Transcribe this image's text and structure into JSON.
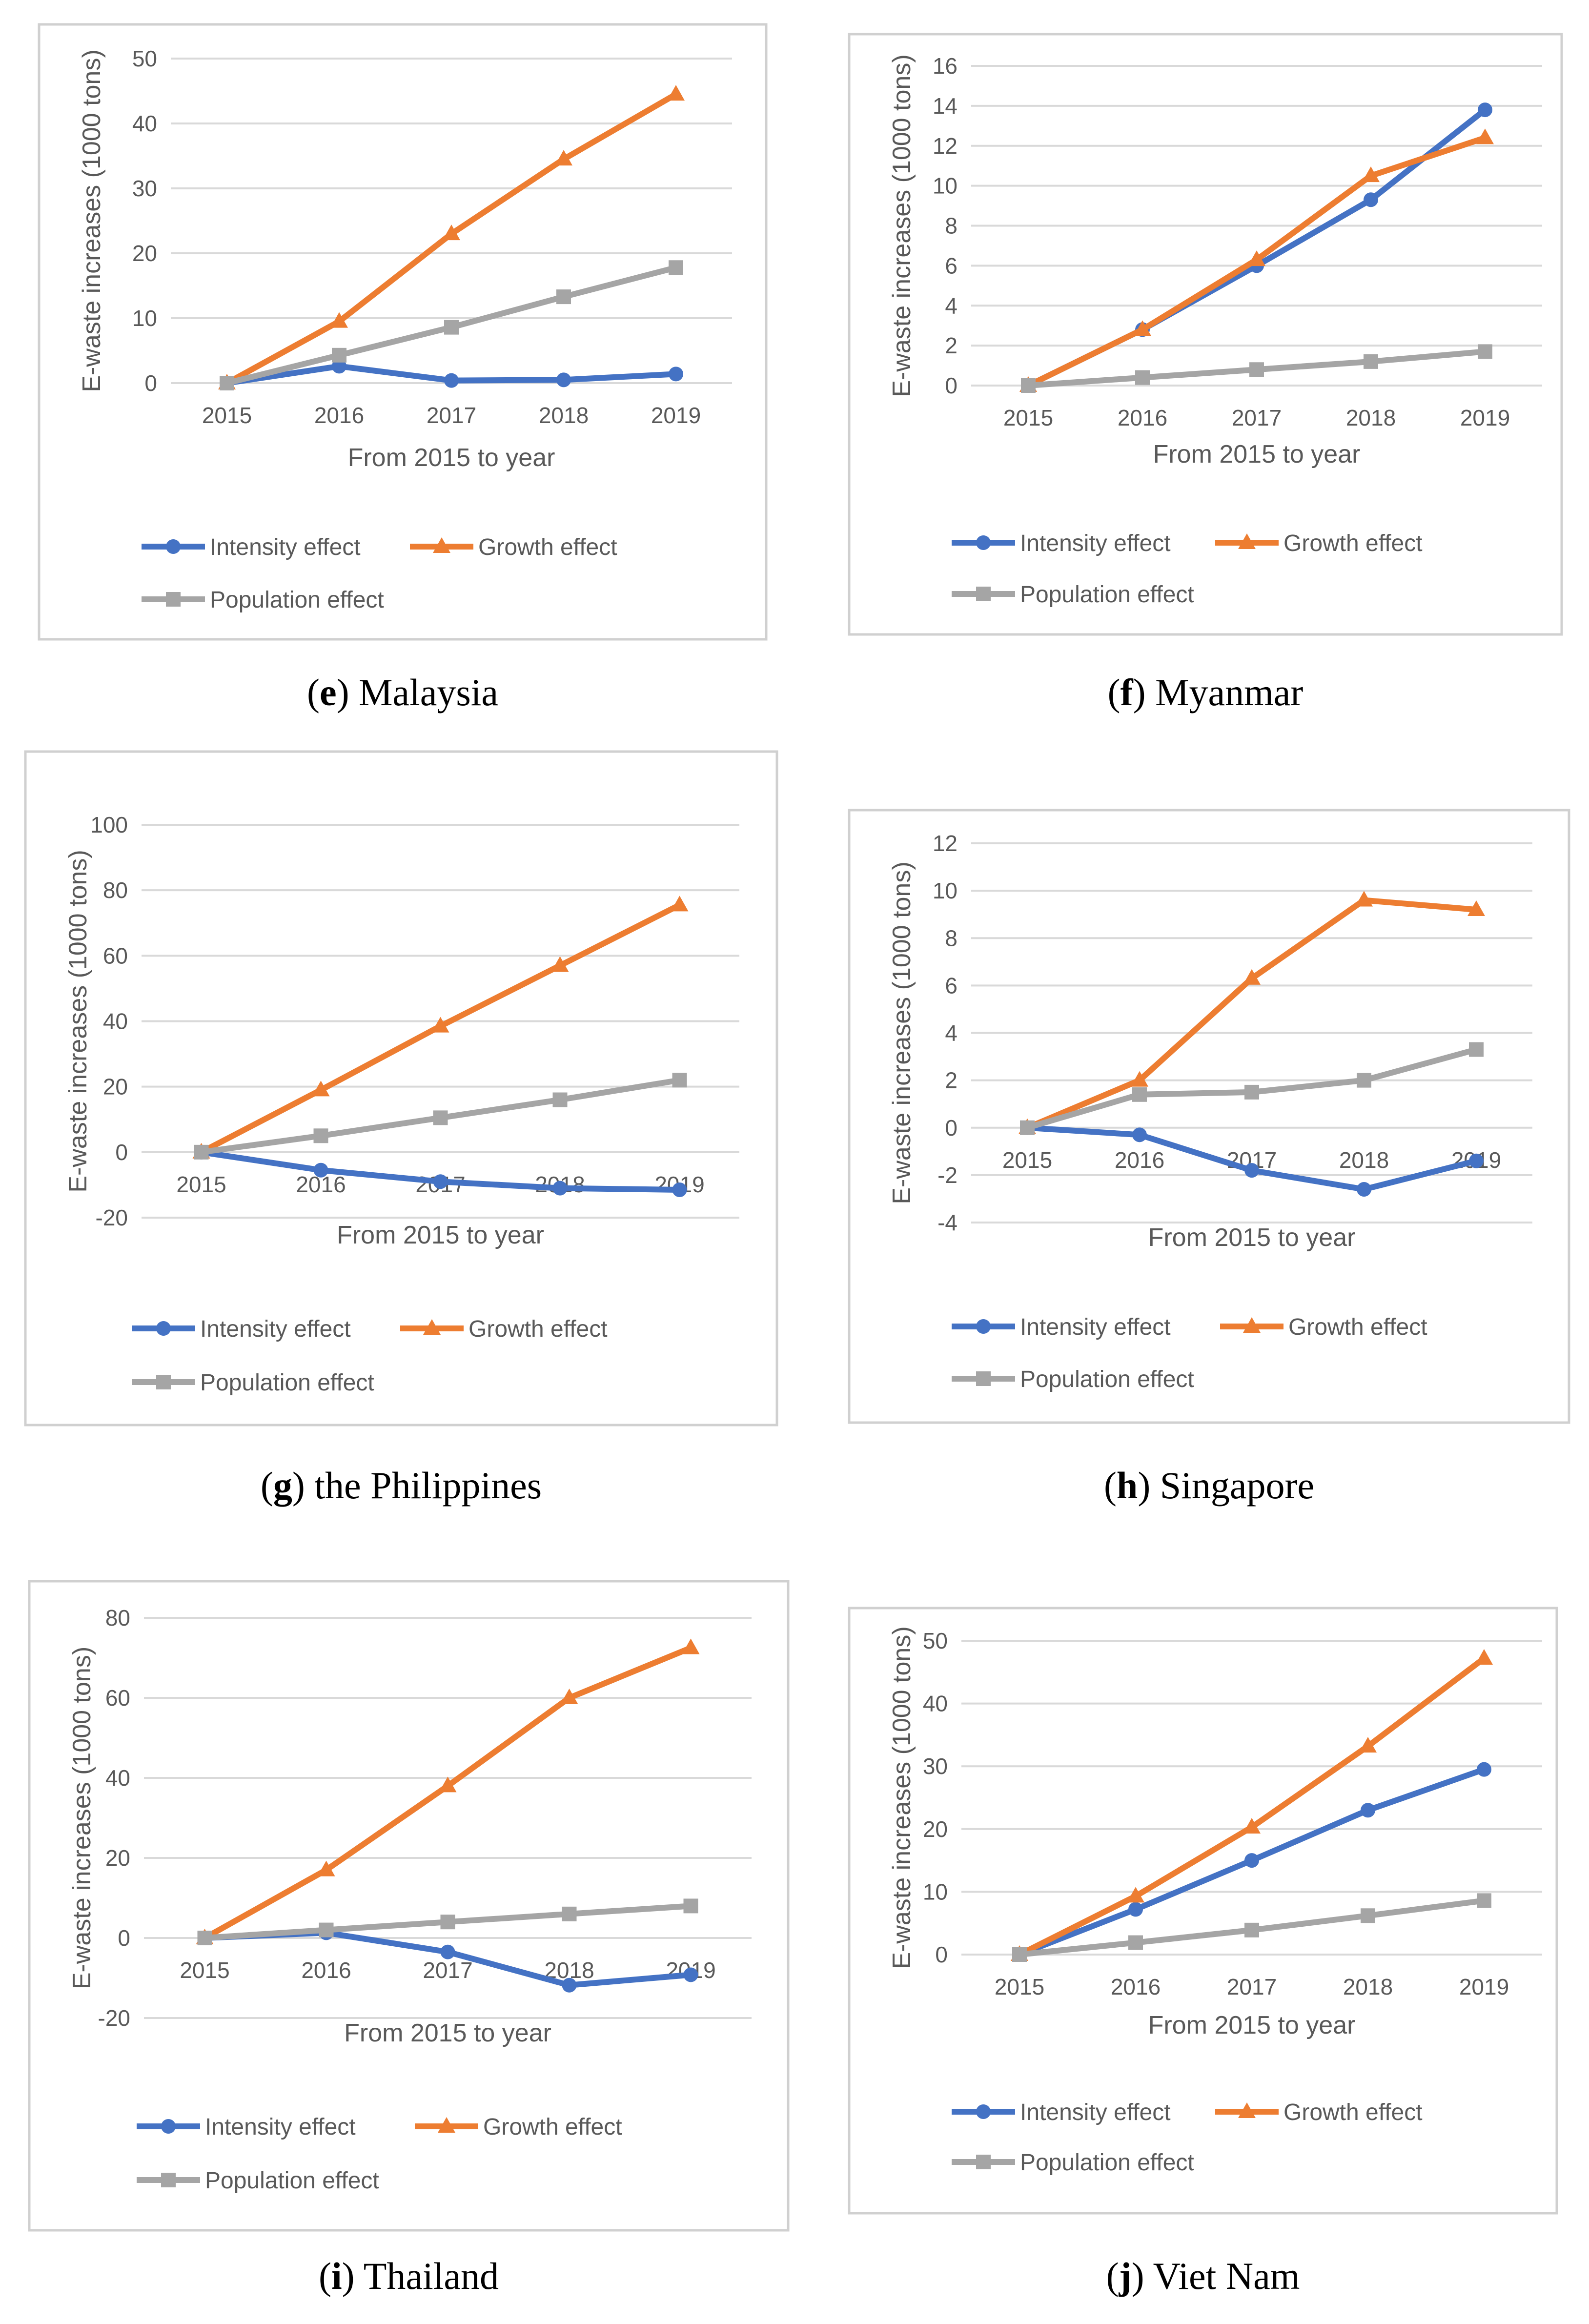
{
  "colors": {
    "intensity": "#4472C4",
    "growth": "#ED7D31",
    "population": "#A5A5A5"
  },
  "legend": {
    "intensity": "Intensity effect",
    "growth": "Growth effect",
    "population": "Population effect"
  },
  "chart_data": [
    {
      "id": "e",
      "caption_letter": "e",
      "caption_text": " Malaysia",
      "type": "line",
      "categories": [
        "2015",
        "2016",
        "2017",
        "2018",
        "2019"
      ],
      "xlabel": "From 2015 to year",
      "ylabel": "E-waste increases (1000 tons)",
      "ylim": [
        0,
        50
      ],
      "yticks": [
        0,
        10,
        20,
        30,
        40,
        50
      ],
      "series": [
        {
          "name": "Intensity effect",
          "values": [
            0,
            2.6,
            0.4,
            0.5,
            1.4
          ]
        },
        {
          "name": "Growth effect",
          "values": [
            0,
            9.5,
            23,
            34.5,
            44.5
          ]
        },
        {
          "name": "Population effect",
          "values": [
            0,
            4.3,
            8.6,
            13.3,
            17.8
          ]
        }
      ]
    },
    {
      "id": "f",
      "caption_letter": "f",
      "caption_text": " Myanmar",
      "type": "line",
      "categories": [
        "2015",
        "2016",
        "2017",
        "2018",
        "2019"
      ],
      "xlabel": "From 2015 to year",
      "ylabel": "E-waste increases (1000 tons)",
      "ylim": [
        0,
        16
      ],
      "yticks": [
        0,
        2,
        4,
        6,
        8,
        10,
        12,
        14,
        16
      ],
      "series": [
        {
          "name": "Intensity effect",
          "values": [
            0,
            2.8,
            6.0,
            9.3,
            13.8
          ]
        },
        {
          "name": "Growth effect",
          "values": [
            0,
            2.8,
            6.3,
            10.5,
            12.4
          ]
        },
        {
          "name": "Population effect",
          "values": [
            0,
            0.4,
            0.8,
            1.2,
            1.7
          ]
        }
      ]
    },
    {
      "id": "g",
      "caption_letter": "g",
      "caption_text": " the Philippines",
      "type": "line",
      "categories": [
        "2015",
        "2016",
        "2017",
        "2018",
        "2019"
      ],
      "xlabel": "From 2015 to year",
      "ylabel": "E-waste increases (1000 tons)",
      "ylim": [
        -20,
        100
      ],
      "yticks": [
        -20,
        0,
        20,
        40,
        60,
        80,
        100
      ],
      "series": [
        {
          "name": "Intensity effect",
          "values": [
            0,
            -5.5,
            -9,
            -11,
            -11.5
          ]
        },
        {
          "name": "Growth effect",
          "values": [
            0,
            19,
            38.5,
            57,
            75.5
          ]
        },
        {
          "name": "Population effect",
          "values": [
            0,
            5,
            10.5,
            16,
            22
          ]
        }
      ]
    },
    {
      "id": "h",
      "caption_letter": "h",
      "caption_text": " Singapore",
      "type": "line",
      "categories": [
        "2015",
        "2016",
        "2017",
        "2018",
        "2019"
      ],
      "xlabel": "From 2015 to year",
      "ylabel": "E-waste increases (1000 tons)",
      "ylim": [
        -4,
        12
      ],
      "yticks": [
        -4,
        -2,
        0,
        2,
        4,
        6,
        8,
        10,
        12
      ],
      "series": [
        {
          "name": "Intensity effect",
          "values": [
            0,
            -0.3,
            -1.8,
            -2.6,
            -1.4
          ]
        },
        {
          "name": "Growth effect",
          "values": [
            0,
            2.0,
            6.3,
            9.6,
            9.2
          ]
        },
        {
          "name": "Population effect",
          "values": [
            0,
            1.4,
            1.5,
            2.0,
            3.3
          ]
        }
      ]
    },
    {
      "id": "i",
      "caption_letter": "i",
      "caption_text": " Thailand",
      "type": "line",
      "categories": [
        "2015",
        "2016",
        "2017",
        "2018",
        "2019"
      ],
      "xlabel": "From 2015 to year",
      "ylabel": "E-waste increases (1000 tons)",
      "ylim": [
        -20,
        80
      ],
      "yticks": [
        -20,
        0,
        20,
        40,
        60,
        80
      ],
      "series": [
        {
          "name": "Intensity effect",
          "values": [
            0,
            1.3,
            -3.5,
            -11.8,
            -9.2
          ]
        },
        {
          "name": "Growth effect",
          "values": [
            0,
            17,
            38,
            60,
            72.5
          ]
        },
        {
          "name": "Population effect",
          "values": [
            0,
            2,
            4,
            6,
            8
          ]
        }
      ]
    },
    {
      "id": "j",
      "caption_letter": "j",
      "caption_text": " Viet Nam",
      "type": "line",
      "categories": [
        "2015",
        "2016",
        "2017",
        "2018",
        "2019"
      ],
      "xlabel": "From 2015 to year",
      "ylabel": "E-waste increases (1000 tons)",
      "ylim": [
        0,
        50
      ],
      "yticks": [
        0,
        10,
        20,
        30,
        40,
        50
      ],
      "series": [
        {
          "name": "Intensity effect",
          "values": [
            0,
            7.2,
            15,
            23,
            29.5
          ]
        },
        {
          "name": "Growth effect",
          "values": [
            0,
            9.3,
            20.3,
            33.2,
            47.2
          ]
        },
        {
          "name": "Population effect",
          "values": [
            0,
            1.9,
            3.9,
            6.2,
            8.6
          ]
        }
      ]
    }
  ]
}
